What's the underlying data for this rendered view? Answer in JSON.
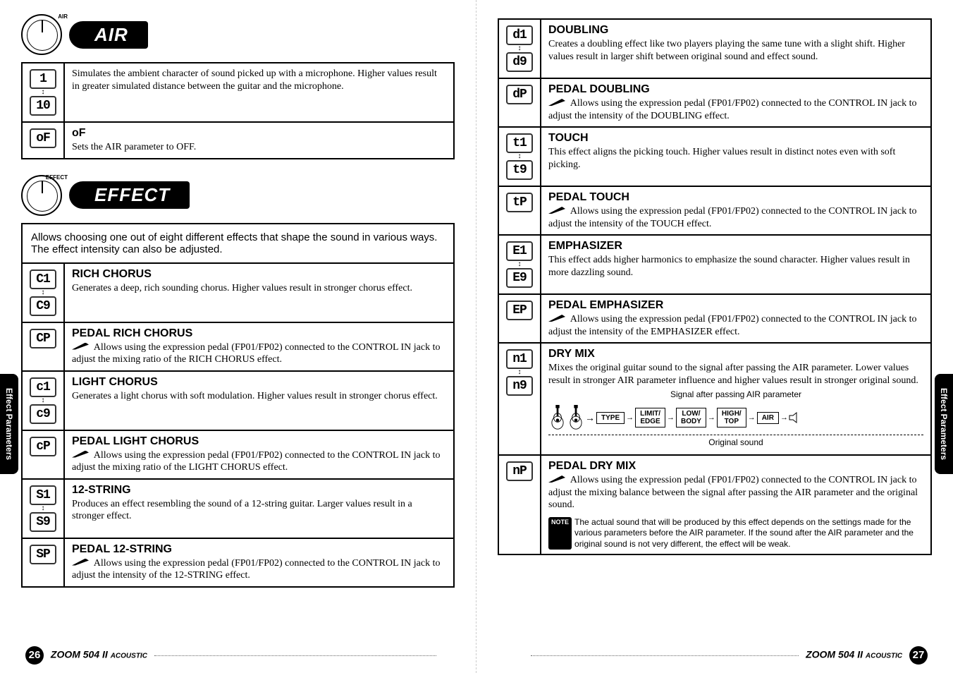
{
  "side_tab": "Effect Parameters",
  "footer": {
    "product": "ZOOM 504 II",
    "subtitle": "ACOUSTIC",
    "page_left": "26",
    "page_right": "27"
  },
  "air": {
    "knob_label": "AIR",
    "title": "AIR",
    "rows": [
      {
        "disp_top": " 1",
        "disp_bot": "10",
        "title": "",
        "desc": "Simulates the ambient character of sound picked up with a microphone. Higher values result in greater simulated distance between the guitar and the microphone."
      },
      {
        "disp_top": "oF",
        "title": "oF",
        "desc": "Sets the AIR parameter to OFF."
      }
    ]
  },
  "effect": {
    "knob_label": "EFFECT",
    "title": "EFFECT",
    "intro": "Allows choosing one out of eight different effects that shape the sound in various ways. The effect intensity can also be adjusted.",
    "rows_left": [
      {
        "disp_top": "C1",
        "disp_bot": "C9",
        "title": "RICH CHORUS",
        "desc": "Generates a deep, rich sounding chorus. Higher values result in stronger chorus effect."
      },
      {
        "disp_top": "CP",
        "title": "PEDAL RICH CHORUS",
        "pedal": true,
        "desc": "Allows using the expression pedal (FP01/FP02) connected to the CONTROL IN jack to adjust the mixing ratio of the RICH CHORUS effect."
      },
      {
        "disp_top": "c1",
        "disp_bot": "c9",
        "title": "LIGHT CHORUS",
        "desc": "Generates a light chorus with soft modulation. Higher values result in stronger chorus effect."
      },
      {
        "disp_top": "cP",
        "title": "PEDAL LIGHT CHORUS",
        "pedal": true,
        "desc": "Allows using the expression pedal (FP01/FP02) connected to the CONTROL IN jack to adjust the mixing ratio of the LIGHT CHORUS effect."
      },
      {
        "disp_top": "S1",
        "disp_bot": "S9",
        "title": "12-STRING",
        "desc": "Produces an effect resembling the sound of a 12-string guitar. Larger values result in a stronger effect."
      },
      {
        "disp_top": "SP",
        "title": "PEDAL 12-STRING",
        "pedal": true,
        "desc": "Allows using the expression pedal (FP01/FP02) connected to the CONTROL IN jack to adjust the intensity of the 12-STRING effect."
      }
    ],
    "rows_right": [
      {
        "disp_top": "d1",
        "disp_bot": "d9",
        "title": "DOUBLING",
        "desc": "Creates a doubling effect like two players playing the same tune with a slight shift. Higher values result in larger shift between original sound and effect sound."
      },
      {
        "disp_top": "dP",
        "title": "PEDAL DOUBLING",
        "pedal": true,
        "desc": "Allows using the expression pedal (FP01/FP02) connected to the CONTROL IN jack to adjust the intensity of the DOUBLING effect."
      },
      {
        "disp_top": "t1",
        "disp_bot": "t9",
        "title": "TOUCH",
        "desc": "This effect aligns the picking touch. Higher values result in distinct notes even with soft picking."
      },
      {
        "disp_top": "tP",
        "title": "PEDAL TOUCH",
        "pedal": true,
        "desc": "Allows using the expression pedal (FP01/FP02) connected to the CONTROL IN jack to adjust the intensity of the TOUCH effect."
      },
      {
        "disp_top": "E1",
        "disp_bot": "E9",
        "title": "EMPHASIZER",
        "desc": "This effect adds higher harmonics to emphasize the sound character. Higher values result in more dazzling sound."
      },
      {
        "disp_top": "EP",
        "title": "PEDAL EMPHASIZER",
        "pedal": true,
        "desc": "Allows using the expression pedal (FP01/FP02) connected to the CONTROL IN jack to adjust the intensity of the EMPHASIZER effect."
      },
      {
        "disp_top": "n1",
        "disp_bot": "n9",
        "title": "DRY MIX",
        "desc": "Mixes the original guitar sound to the signal after passing the AIR parameter. Lower values result in stronger AIR parameter influence and higher values result in stronger original sound.",
        "has_diagram": true
      },
      {
        "disp_top": "nP",
        "title": "PEDAL DRY MIX",
        "pedal": true,
        "desc": "Allows using the expression pedal (FP01/FP02) connected to the CONTROL IN jack to adjust the mixing balance between the signal after passing the AIR parameter and the original sound.",
        "has_note": true
      }
    ]
  },
  "diagram": {
    "label_top": "Signal after passing AIR parameter",
    "label_bot": "Original sound",
    "boxes": [
      "TYPE",
      "LIMIT/\nEDGE",
      "LOW/\nBODY",
      "HIGH/\nTOP",
      "AIR"
    ]
  },
  "note": {
    "label": "NOTE",
    "text": "The actual sound that will be produced by this effect depends on the settings made for the various parameters before the AIR parameter. If the sound after the AIR parameter and the original sound is not very different, the effect will be weak."
  }
}
